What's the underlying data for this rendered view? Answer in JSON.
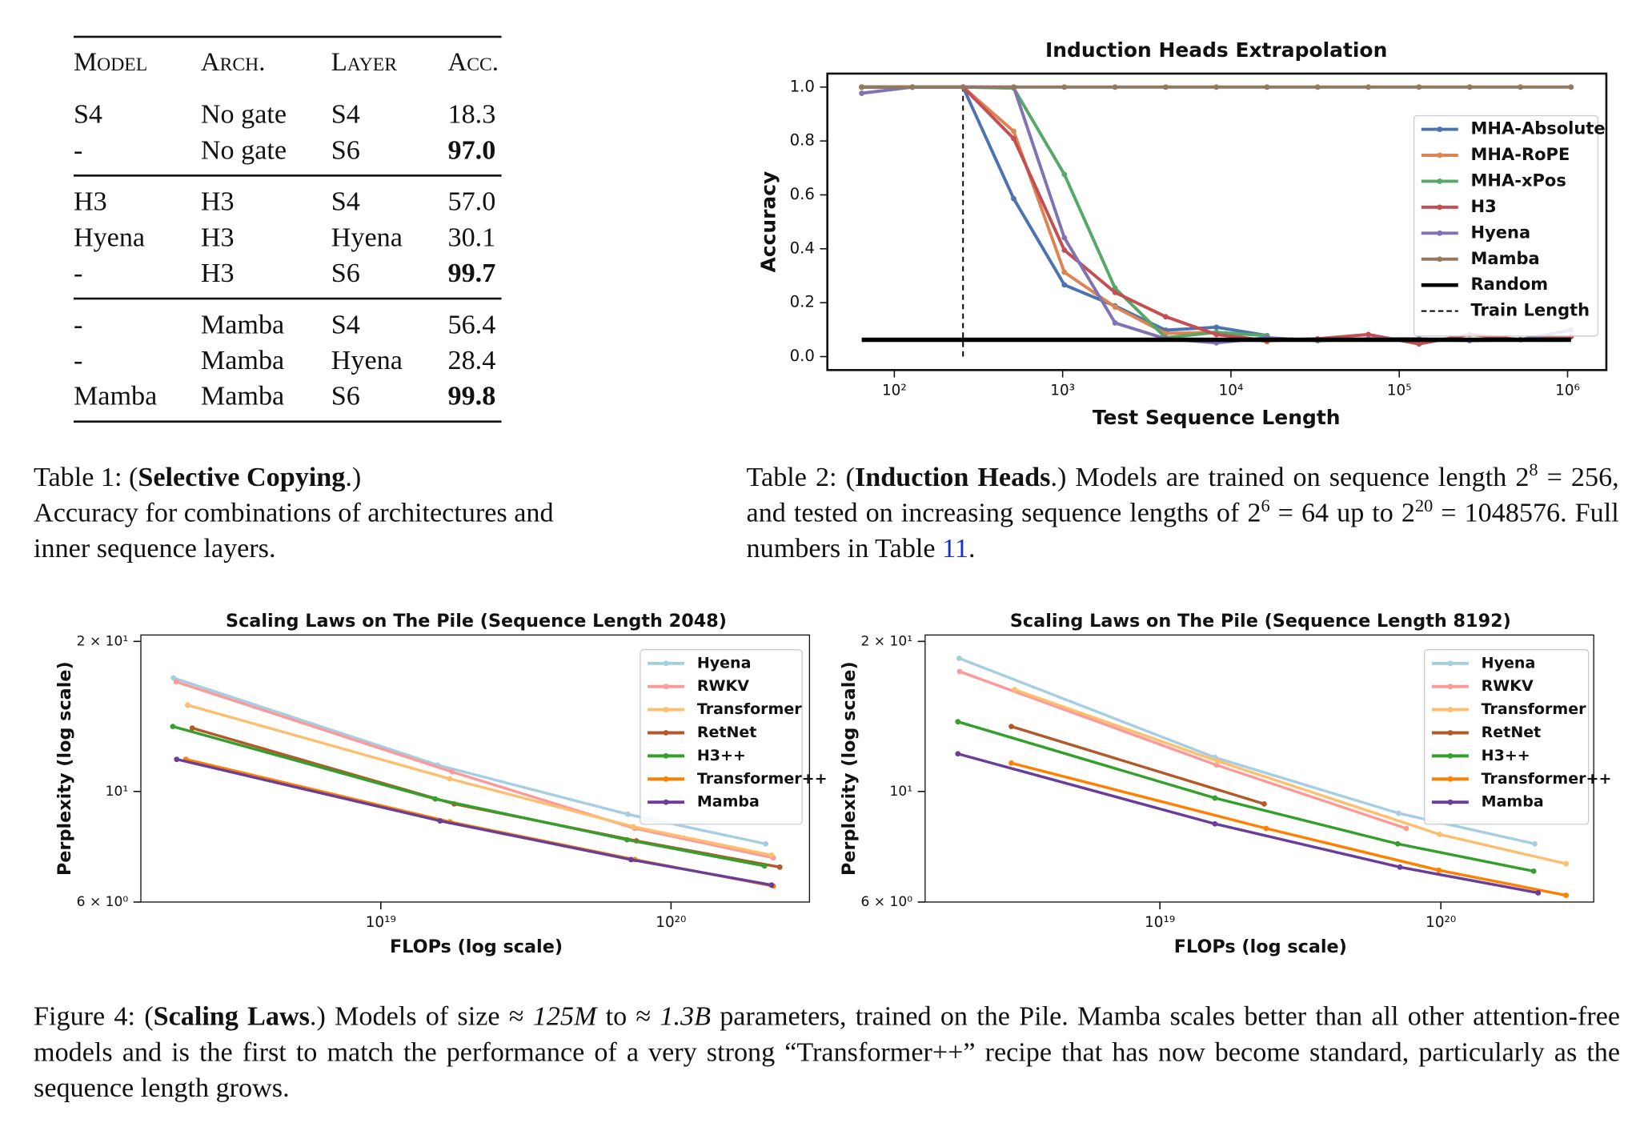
{
  "table1": {
    "columns": [
      "Model",
      "Arch.",
      "Layer",
      "Acc."
    ],
    "groups": [
      [
        [
          "S4",
          "No gate",
          "S4",
          "18.3"
        ],
        [
          "-",
          "No gate",
          "S6",
          "97.0"
        ]
      ],
      [
        [
          "H3",
          "H3",
          "S4",
          "57.0"
        ],
        [
          "Hyena",
          "H3",
          "Hyena",
          "30.1"
        ],
        [
          "-",
          "H3",
          "S6",
          "99.7"
        ]
      ],
      [
        [
          "-",
          "Mamba",
          "S4",
          "56.4"
        ],
        [
          "-",
          "Mamba",
          "Hyena",
          "28.4"
        ],
        [
          "Mamba",
          "Mamba",
          "S6",
          "99.8"
        ]
      ]
    ]
  },
  "caption1": [
    [
      {
        "text": "Table 1: ("
      },
      {
        "text": "Selective Copying",
        "bold": true
      },
      {
        "text": ".)"
      }
    ],
    [
      {
        "text": "Accuracy for combinations of architectures and inner sequence layers."
      }
    ]
  ],
  "caption2": [
    {
      "text": "Table 2: ("
    },
    {
      "text": "Induction Heads",
      "bold": true
    },
    {
      "text": ".) Models are trained on sequence length 2"
    },
    {
      "text": "8",
      "sup": true
    },
    {
      "text": " = 256, and tested on increasing sequence lengths of 2"
    },
    {
      "text": "6",
      "sup": true
    },
    {
      "text": " = 64 up to 2"
    },
    {
      "text": "20",
      "sup": true
    },
    {
      "text": " = 1048576. Full numbers in Table "
    },
    {
      "text": "11",
      "link": true
    },
    {
      "text": "."
    }
  ],
  "caption3": [
    {
      "text": "Figure 4: ("
    },
    {
      "text": "Scaling Laws",
      "bold": true
    },
    {
      "text": ".) Models of size ≈ "
    },
    {
      "text": "125M",
      "italic": true
    },
    {
      "text": " to ≈ "
    },
    {
      "text": "1.3B",
      "italic": true
    },
    {
      "text": " parameters, trained on the Pile. Mamba scales better than all other attention-free models and is the first to match the performance of a very strong “Transformer++” recipe that has now become standard, particularly as the sequence length grows."
    }
  ],
  "chart_data": [
    {
      "type": "line",
      "title": "Induction Heads Extrapolation",
      "xlabel": "Test Sequence Length",
      "ylabel": "Accuracy",
      "xlog": true,
      "xlim": [
        40,
        1700000
      ],
      "ylim": [
        -0.05,
        1.05
      ],
      "xticks": [
        {
          "value": 100,
          "label": "10²"
        },
        {
          "value": 1000,
          "label": "10³"
        },
        {
          "value": 10000,
          "label": "10⁴"
        },
        {
          "value": 100000,
          "label": "10⁵"
        },
        {
          "value": 1000000,
          "label": "10⁶"
        }
      ],
      "yticks": [
        {
          "value": 0,
          "label": "0.0"
        },
        {
          "value": 0.2,
          "label": "0.2"
        },
        {
          "value": 0.4,
          "label": "0.4"
        },
        {
          "value": 0.6,
          "label": "0.6"
        },
        {
          "value": 0.8,
          "label": "0.8"
        },
        {
          "value": 1,
          "label": "1.0"
        }
      ],
      "legend": "upper right",
      "x": [
        64,
        128,
        256,
        512,
        1024,
        2048,
        4096,
        8192,
        16384,
        32768,
        65536,
        131072,
        262144,
        524288,
        1048576
      ],
      "series": [
        {
          "name": "MHA-Absolute",
          "color": "#4c72b0",
          "values": [
            1.0,
            1.0,
            1.0,
            0.586,
            0.266,
            0.188,
            0.098,
            0.109,
            0.078,
            null,
            null,
            null,
            null,
            null,
            null
          ]
        },
        {
          "name": "MHA-RoPE",
          "color": "#dd8452",
          "values": [
            1.0,
            1.0,
            1.0,
            0.836,
            0.313,
            0.184,
            0.086,
            0.09,
            0.055,
            null,
            null,
            null,
            null,
            null,
            null
          ]
        },
        {
          "name": "MHA-xPos",
          "color": "#55a868",
          "values": [
            1.0,
            1.0,
            1.0,
            0.996,
            0.676,
            0.254,
            0.07,
            0.09,
            0.078,
            null,
            null,
            null,
            null,
            null,
            null
          ]
        },
        {
          "name": "H3",
          "color": "#c44e52",
          "values": [
            1.0,
            1.0,
            1.0,
            0.809,
            0.395,
            0.238,
            0.148,
            0.082,
            0.059,
            0.066,
            0.082,
            0.047,
            0.082,
            0.063,
            0.074
          ]
        },
        {
          "name": "Hyena",
          "color": "#8172b3",
          "values": [
            0.977,
            1.0,
            1.0,
            1.0,
            0.441,
            0.125,
            0.066,
            0.051,
            0.07,
            0.059,
            0.066,
            0.066,
            0.059,
            0.063,
            0.098
          ]
        },
        {
          "name": "Mamba",
          "color": "#937860",
          "values": [
            1.0,
            1.0,
            1.0,
            1.0,
            1.0,
            1.0,
            1.0,
            1.0,
            1.0,
            1.0,
            1.0,
            1.0,
            1.0,
            1.0,
            1.0
          ]
        },
        {
          "name": "Random",
          "color": "#000000",
          "marker": false,
          "values": [
            0.0625,
            0.0625,
            0.0625,
            0.0625,
            0.0625,
            0.0625,
            0.0625,
            0.0625,
            0.0625,
            0.0625,
            0.0625,
            0.0625,
            0.0625,
            0.0625,
            0.0625
          ]
        }
      ],
      "vlines": [
        {
          "name": "Train Length",
          "color": "#000000",
          "style": "dashed",
          "x": 256,
          "y": [
            0,
            1
          ]
        }
      ]
    },
    {
      "type": "line",
      "title": "Scaling Laws on The Pile (Sequence Length 2048)",
      "xlabel": "FLOPs (log scale)",
      "ylabel": "Perplexity (log scale)",
      "xlog": true,
      "ylog": true,
      "xlim": [
        1.49e+18,
        3e+20
      ],
      "ylim": [
        6,
        20.6
      ],
      "xticks": [
        {
          "value": 1e+19,
          "label": "10¹⁹"
        },
        {
          "value": 1e+20,
          "label": "10²⁰"
        }
      ],
      "yticks": [
        {
          "value": 6,
          "label": "6 × 10⁰"
        },
        {
          "value": 10,
          "label": "10¹"
        },
        {
          "value": 20,
          "label": "2 × 10¹"
        }
      ],
      "legend": "upper right",
      "series": [
        {
          "name": "Hyena",
          "color": "#a6cee3",
          "x": [
            1.93e+18,
            1.57e+19,
            7.1e+19,
            2.12e+20
          ],
          "values": [
            16.9,
            11.3,
            9.0,
            7.85
          ]
        },
        {
          "name": "RWKV",
          "color": "#fb9a99",
          "x": [
            1.97e+18,
            1.76e+19,
            7.5e+19,
            2.25e+20
          ],
          "values": [
            16.6,
            10.95,
            8.43,
            7.36
          ]
        },
        {
          "name": "Transformer",
          "color": "#fdbf6f",
          "x": [
            2.16e+18,
            1.73e+19,
            7.42e+19,
            2.22e+20
          ],
          "values": [
            14.9,
            10.6,
            8.5,
            7.45
          ]
        },
        {
          "name": "RetNet",
          "color": "#b15928",
          "x": [
            2.24e+18,
            1.79e+19,
            7.6e+19,
            2.37e+20
          ],
          "values": [
            13.4,
            9.44,
            7.96,
            7.05
          ]
        },
        {
          "name": "H3++",
          "color": "#33a02c",
          "x": [
            1.92e+18,
            1.54e+19,
            7.05e+19,
            2.1e+20
          ],
          "values": [
            13.5,
            9.66,
            8.0,
            7.09
          ]
        },
        {
          "name": "Transformer++",
          "color": "#ff7f00",
          "x": [
            2.13e+18,
            1.73e+19,
            7.5e+19,
            2.25e+20
          ],
          "values": [
            11.6,
            8.69,
            7.3,
            6.46
          ]
        },
        {
          "name": "Mamba",
          "color": "#6a3d9a",
          "x": [
            1.98e+18,
            1.6e+19,
            7.28e+19,
            2.22e+20
          ],
          "values": [
            11.6,
            8.73,
            7.3,
            6.49
          ]
        }
      ]
    },
    {
      "type": "line",
      "title": "Scaling Laws on The Pile (Sequence Length 8192)",
      "xlabel": "FLOPs (log scale)",
      "ylabel": "Perplexity (log scale)",
      "xlog": true,
      "ylog": true,
      "xlim": [
        1.46e+18,
        3.5e+20
      ],
      "ylim": [
        6,
        20.6
      ],
      "xticks": [
        {
          "value": 1e+19,
          "label": "10¹⁹"
        },
        {
          "value": 1e+20,
          "label": "10²⁰"
        }
      ],
      "yticks": [
        {
          "value": 6,
          "label": "6 × 10⁰"
        },
        {
          "value": 10,
          "label": "10¹"
        },
        {
          "value": 20,
          "label": "2 × 10¹"
        }
      ],
      "legend": "upper right",
      "series": [
        {
          "name": "Hyena",
          "color": "#a6cee3",
          "x": [
            1.93e+18,
            1.57e+19,
            7.08e+19,
            2.16e+20
          ],
          "values": [
            18.5,
            11.7,
            9.04,
            7.85
          ]
        },
        {
          "name": "RWKV",
          "color": "#fb9a99",
          "x": [
            1.94e+18,
            1.59e+19,
            7.53e+19
          ],
          "values": [
            17.4,
            11.3,
            8.43
          ]
        },
        {
          "name": "Transformer",
          "color": "#fdbf6f",
          "x": [
            3.04e+18,
            1.61e+19,
            9.9e+19,
            2.79e+20
          ],
          "values": [
            16.0,
            11.5,
            8.2,
            7.16
          ]
        },
        {
          "name": "RetNet",
          "color": "#b15928",
          "x": [
            2.96e+18,
            2.35e+19
          ],
          "values": [
            13.5,
            9.44
          ]
        },
        {
          "name": "H3++",
          "color": "#33a02c",
          "x": [
            1.91e+18,
            1.57e+19,
            7.02e+19,
            2.14e+20
          ],
          "values": [
            13.8,
            9.7,
            7.85,
            6.92
          ]
        },
        {
          "name": "Transformer++",
          "color": "#ff7f00",
          "x": [
            2.96e+18,
            2.39e+19,
            9.83e+19,
            2.79e+20
          ],
          "values": [
            11.4,
            8.43,
            6.95,
            6.19
          ]
        },
        {
          "name": "Mamba",
          "color": "#6a3d9a",
          "x": [
            1.91e+18,
            1.57e+19,
            7.15e+19,
            2.22e+20
          ],
          "values": [
            11.9,
            8.61,
            7.05,
            6.26
          ]
        }
      ]
    }
  ]
}
